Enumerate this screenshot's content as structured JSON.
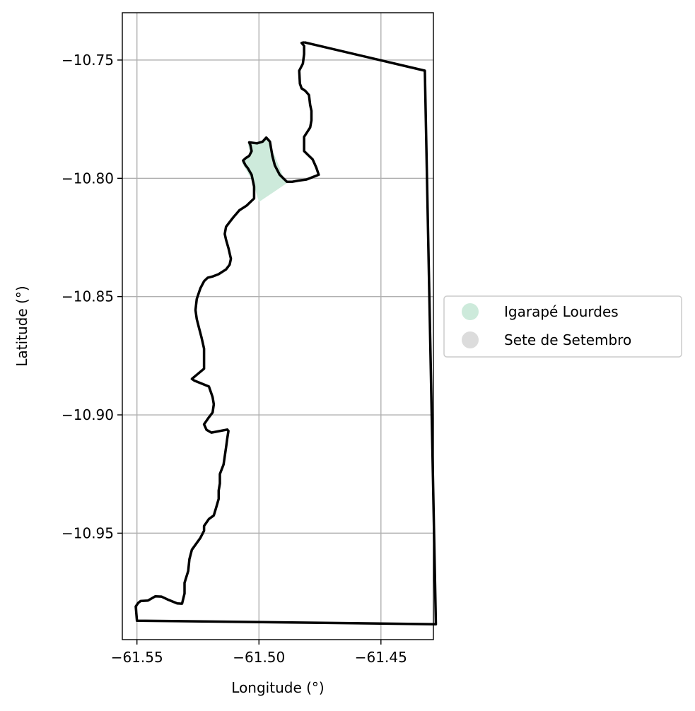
{
  "chart_data": {
    "type": "map",
    "xlabel": "Longitude (°)",
    "ylabel": "Latitude (°)",
    "xlim": [
      -61.556,
      -61.4285
    ],
    "ylim": [
      -10.995,
      -10.73
    ],
    "xticks": [
      {
        "value": -61.55,
        "label": "−61.55"
      },
      {
        "value": -61.5,
        "label": "−61.50"
      },
      {
        "value": -61.45,
        "label": "−61.45"
      }
    ],
    "yticks": [
      {
        "value": -10.75,
        "label": "−10.75"
      },
      {
        "value": -10.8,
        "label": "−10.80"
      },
      {
        "value": -10.85,
        "label": "−10.85"
      },
      {
        "value": -10.9,
        "label": "−10.90"
      },
      {
        "value": -10.95,
        "label": "−10.95"
      }
    ],
    "grid": true,
    "legend_position": "right-center",
    "legend": [
      {
        "label": "Igarapé Lourdes",
        "color": "#cdeadb"
      },
      {
        "label": "Sete de Setembro",
        "color": "#dcdcdc"
      }
    ],
    "fill_region": {
      "name": "Igarapé Lourdes",
      "color": "#cdeadb",
      "points": [
        [
          -61.5045,
          -10.7855
        ],
        [
          -61.4965,
          -10.7835
        ],
        [
          -61.4935,
          -10.7905
        ],
        [
          -61.49,
          -10.7995
        ],
        [
          -61.4885,
          -10.802
        ],
        [
          -61.5,
          -10.81
        ],
        [
          -61.5025,
          -10.8015
        ],
        [
          -61.5055,
          -10.796
        ],
        [
          -61.507,
          -10.7935
        ],
        [
          -61.5055,
          -10.7915
        ],
        [
          -61.5035,
          -10.791
        ],
        [
          -61.504,
          -10.788
        ]
      ]
    },
    "boundary": {
      "color": "#000000",
      "points": [
        [
          -61.4815,
          -10.7425
        ],
        [
          -61.432,
          -10.7545
        ],
        [
          -61.4275,
          -10.9885
        ],
        [
          -61.55,
          -10.987
        ],
        [
          -61.5505,
          -10.981
        ],
        [
          -61.5495,
          -10.9795
        ],
        [
          -61.5485,
          -10.9787
        ],
        [
          -61.5455,
          -10.9785
        ],
        [
          -61.5425,
          -10.9767
        ],
        [
          -61.54,
          -10.9768
        ],
        [
          -61.5375,
          -10.978
        ],
        [
          -61.5335,
          -10.9797
        ],
        [
          -61.5315,
          -10.9798
        ],
        [
          -61.5305,
          -10.9755
        ],
        [
          -61.5305,
          -10.971
        ],
        [
          -61.529,
          -10.966
        ],
        [
          -61.5285,
          -10.961
        ],
        [
          -61.5275,
          -10.957
        ],
        [
          -61.524,
          -10.952
        ],
        [
          -61.5225,
          -10.949
        ],
        [
          -61.5225,
          -10.947
        ],
        [
          -61.5205,
          -10.944
        ],
        [
          -61.5185,
          -10.9425
        ],
        [
          -61.5175,
          -10.939
        ],
        [
          -61.5165,
          -10.9355
        ],
        [
          -61.5165,
          -10.932
        ],
        [
          -61.516,
          -10.929
        ],
        [
          -61.516,
          -10.925
        ],
        [
          -61.5145,
          -10.921
        ],
        [
          -61.514,
          -10.9175
        ],
        [
          -61.5135,
          -10.9138
        ],
        [
          -61.513,
          -10.91
        ],
        [
          -61.5125,
          -10.9068
        ],
        [
          -61.513,
          -10.9062
        ],
        [
          -61.5195,
          -10.9075
        ],
        [
          -61.5215,
          -10.9063
        ],
        [
          -61.5225,
          -10.904
        ],
        [
          -61.5205,
          -10.901
        ],
        [
          -61.519,
          -10.899
        ],
        [
          -61.5185,
          -10.8955
        ],
        [
          -61.519,
          -10.8925
        ],
        [
          -61.5195,
          -10.891
        ],
        [
          -61.5205,
          -10.888
        ],
        [
          -61.5265,
          -10.8855
        ],
        [
          -61.5275,
          -10.8848
        ],
        [
          -61.526,
          -10.8835
        ],
        [
          -61.5225,
          -10.8805
        ],
        [
          -61.5225,
          -10.872
        ],
        [
          -61.5235,
          -10.8675
        ],
        [
          -61.5245,
          -10.8635
        ],
        [
          -61.5255,
          -10.8595
        ],
        [
          -61.526,
          -10.8557
        ],
        [
          -61.5255,
          -10.851
        ],
        [
          -61.524,
          -10.8465
        ],
        [
          -61.5225,
          -10.8435
        ],
        [
          -61.521,
          -10.842
        ],
        [
          -61.519,
          -10.8415
        ],
        [
          -61.5165,
          -10.8405
        ],
        [
          -61.5135,
          -10.8385
        ],
        [
          -61.512,
          -10.8365
        ],
        [
          -61.5115,
          -10.834
        ],
        [
          -61.5125,
          -10.8295
        ],
        [
          -61.5135,
          -10.826
        ],
        [
          -61.514,
          -10.8235
        ],
        [
          -61.5135,
          -10.8205
        ],
        [
          -61.512,
          -10.8185
        ],
        [
          -61.5105,
          -10.8165
        ],
        [
          -61.508,
          -10.8135
        ],
        [
          -61.505,
          -10.8115
        ],
        [
          -61.502,
          -10.8085
        ],
        [
          -61.502,
          -10.8035
        ],
        [
          -61.503,
          -10.7985
        ],
        [
          -61.5045,
          -10.7958
        ],
        [
          -61.5055,
          -10.7945
        ],
        [
          -61.5065,
          -10.7925
        ],
        [
          -61.5055,
          -10.7915
        ],
        [
          -61.504,
          -10.7905
        ],
        [
          -61.503,
          -10.7885
        ],
        [
          -61.5035,
          -10.786
        ],
        [
          -61.504,
          -10.7848
        ],
        [
          -61.5008,
          -10.7852
        ],
        [
          -61.4985,
          -10.7845
        ],
        [
          -61.497,
          -10.7828
        ],
        [
          -61.4955,
          -10.7845
        ],
        [
          -61.4945,
          -10.7905
        ],
        [
          -61.4935,
          -10.7945
        ],
        [
          -61.4915,
          -10.7985
        ],
        [
          -61.4885,
          -10.8015
        ],
        [
          -61.4865,
          -10.8015
        ],
        [
          -61.484,
          -10.801
        ],
        [
          -61.4805,
          -10.8005
        ],
        [
          -61.4755,
          -10.7985
        ],
        [
          -61.4765,
          -10.7955
        ],
        [
          -61.478,
          -10.792
        ],
        [
          -61.4795,
          -10.7905
        ],
        [
          -61.4815,
          -10.7885
        ],
        [
          -61.4815,
          -10.7825
        ],
        [
          -61.479,
          -10.7785
        ],
        [
          -61.4785,
          -10.7755
        ],
        [
          -61.4785,
          -10.7715
        ],
        [
          -61.479,
          -10.769
        ],
        [
          -61.4795,
          -10.7648
        ],
        [
          -61.481,
          -10.763
        ],
        [
          -61.4825,
          -10.762
        ],
        [
          -61.4832,
          -10.76
        ],
        [
          -61.4835,
          -10.7545
        ],
        [
          -61.482,
          -10.7515
        ],
        [
          -61.4815,
          -10.7475
        ],
        [
          -61.4815,
          -10.744
        ],
        [
          -61.4825,
          -10.7428
        ]
      ]
    }
  }
}
